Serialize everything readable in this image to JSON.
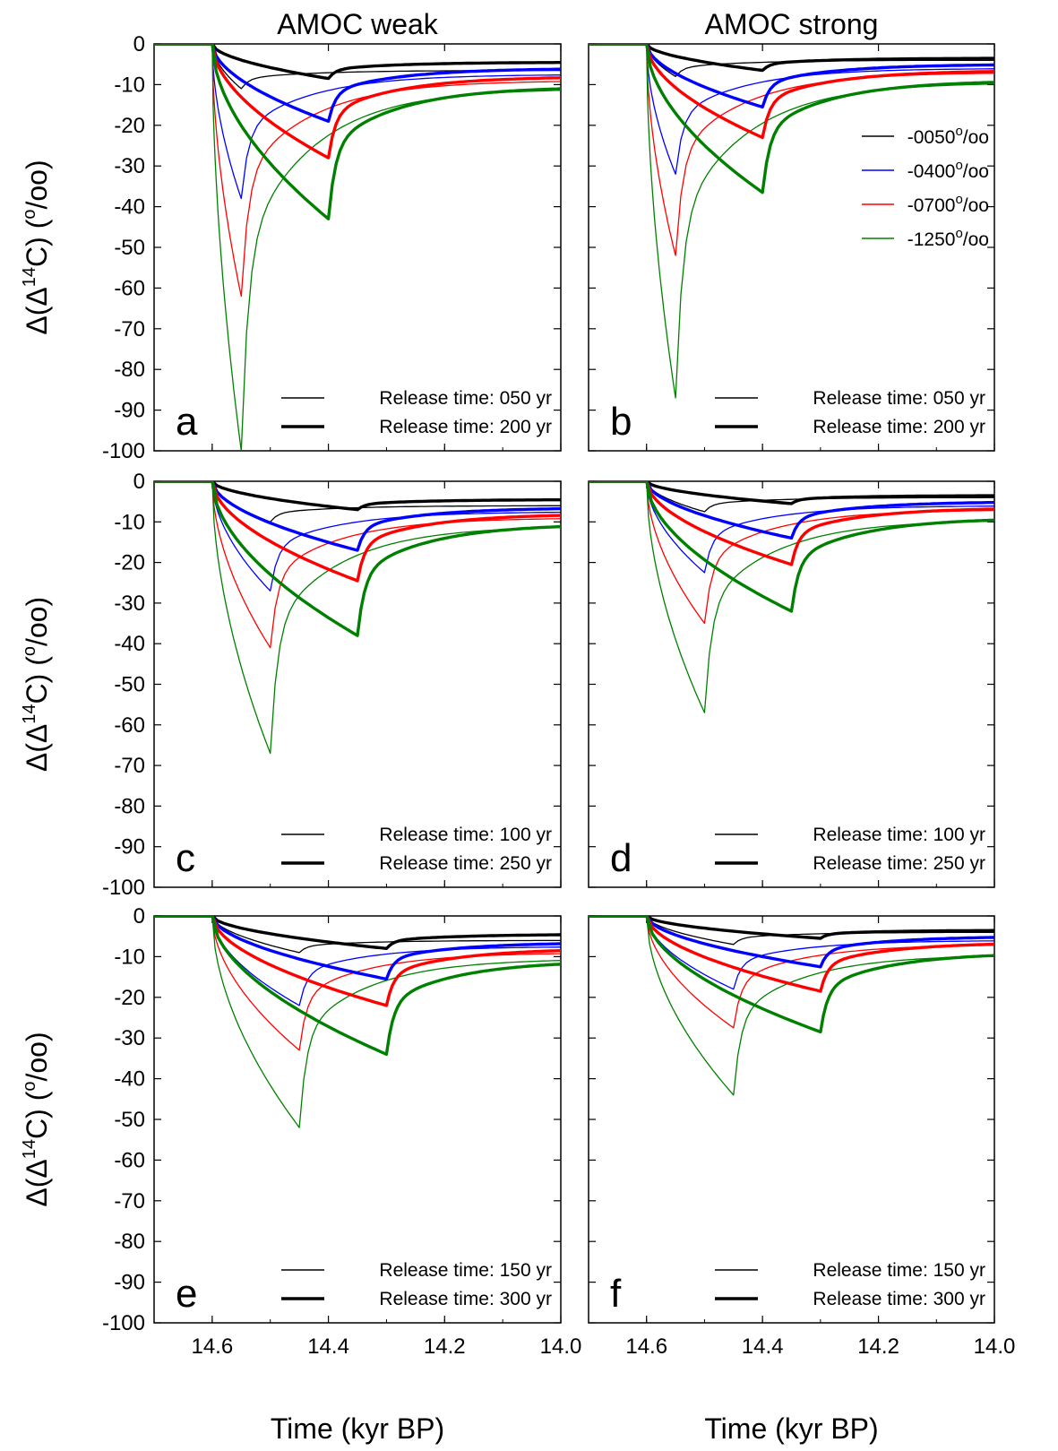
{
  "figure": {
    "column_titles": [
      "AMOC weak",
      "AMOC strong"
    ],
    "xlabel": "Time (kyr BP)",
    "ylabel_main": "Δ(Δ",
    "ylabel_sup": "14",
    "ylabel_tail": "C) (",
    "ylabel_unit_sup": "o",
    "ylabel_unit": "/oo)",
    "series_legend": [
      {
        "label": "-0050",
        "sup": "o",
        "unit": "/oo",
        "color": "#000000"
      },
      {
        "label": "-0400",
        "sup": "o",
        "unit": "/oo",
        "color": "#0000ff"
      },
      {
        "label": "-0700",
        "sup": "o",
        "unit": "/oo",
        "color": "#ff0000"
      },
      {
        "label": "-1250",
        "sup": "o",
        "unit": "/oo",
        "color": "#008000"
      }
    ]
  },
  "chart_data": [
    {
      "type": "line",
      "panel": "a",
      "release_labels": [
        "Release time: 050 yr",
        "Release time: 200 yr"
      ],
      "release_years": [
        50,
        200
      ],
      "xlim": [
        14.7,
        14.0
      ],
      "ylim": [
        -100,
        0
      ],
      "xticks": [
        "14.6",
        "14.4",
        "14.2",
        "14.0"
      ],
      "yticks": [
        "0",
        "-10",
        "-20",
        "-30",
        "-40",
        "-50",
        "-60",
        "-70",
        "-80",
        "-90",
        "-100"
      ],
      "peaks": {
        "thin": [
          -11,
          -38,
          -62,
          -100
        ],
        "thick": [
          -8.5,
          -19,
          -28,
          -43
        ]
      },
      "end_values": {
        "thin": [
          -6.5,
          -7.5,
          -9,
          -11
        ],
        "thick": [
          -4.5,
          -6,
          -8,
          -10.5
        ]
      }
    },
    {
      "type": "line",
      "panel": "b",
      "release_labels": [
        "Release time: 050 yr",
        "Release time: 200 yr"
      ],
      "release_years": [
        50,
        200
      ],
      "xlim": [
        14.7,
        14.0
      ],
      "ylim": [
        -100,
        0
      ],
      "xticks": [
        "14.6",
        "14.4",
        "14.2",
        "14.0"
      ],
      "yticks": [
        "0",
        "-10",
        "-20",
        "-30",
        "-40",
        "-50",
        "-60",
        "-70",
        "-80",
        "-90",
        "-100"
      ],
      "peaks": {
        "thin": [
          -8,
          -32,
          -52,
          -87
        ],
        "thick": [
          -6.5,
          -15.5,
          -23,
          -36.5
        ]
      },
      "end_values": {
        "thin": [
          -4,
          -6,
          -7,
          -9.5
        ],
        "thick": [
          -3.5,
          -5,
          -6.5,
          -9
        ]
      }
    },
    {
      "type": "line",
      "panel": "c",
      "release_labels": [
        "Release time: 100 yr",
        "Release time: 250 yr"
      ],
      "release_years": [
        100,
        250
      ],
      "xlim": [
        14.7,
        14.0
      ],
      "ylim": [
        -100,
        0
      ],
      "xticks": [
        "14.6",
        "14.4",
        "14.2",
        "14.0"
      ],
      "yticks": [
        "0",
        "-10",
        "-20",
        "-30",
        "-40",
        "-50",
        "-60",
        "-70",
        "-80",
        "-90",
        "-100"
      ],
      "peaks": {
        "thin": [
          -10,
          -27,
          -41,
          -67
        ],
        "thick": [
          -7,
          -17,
          -24.5,
          -38
        ]
      },
      "end_values": {
        "thin": [
          -6,
          -7.5,
          -9,
          -11
        ],
        "thick": [
          -4.5,
          -6.5,
          -8,
          -10.5
        ]
      }
    },
    {
      "type": "line",
      "panel": "d",
      "release_labels": [
        "Release time: 100 yr",
        "Release time: 250 yr"
      ],
      "release_years": [
        100,
        250
      ],
      "xlim": [
        14.7,
        14.0
      ],
      "ylim": [
        -100,
        0
      ],
      "xticks": [
        "14.6",
        "14.4",
        "14.2",
        "14.0"
      ],
      "yticks": [
        "0",
        "-10",
        "-20",
        "-30",
        "-40",
        "-50",
        "-60",
        "-70",
        "-80",
        "-90",
        "-100"
      ],
      "peaks": {
        "thin": [
          -7.5,
          -22.5,
          -35,
          -57
        ],
        "thick": [
          -5.5,
          -14,
          -20.5,
          -32
        ]
      },
      "end_values": {
        "thin": [
          -4,
          -6,
          -7,
          -9.5
        ],
        "thick": [
          -3.5,
          -5,
          -6.5,
          -9
        ]
      }
    },
    {
      "type": "line",
      "panel": "e",
      "release_labels": [
        "Release time: 150 yr",
        "Release time: 300 yr"
      ],
      "release_years": [
        150,
        300
      ],
      "xlim": [
        14.7,
        14.0
      ],
      "ylim": [
        -100,
        0
      ],
      "xticks": [
        "14.6",
        "14.4",
        "14.2",
        "14.0"
      ],
      "yticks": [
        "0",
        "-10",
        "-20",
        "-30",
        "-40",
        "-50",
        "-60",
        "-70",
        "-80",
        "-90",
        "-100"
      ],
      "peaks": {
        "thin": [
          -9,
          -22,
          -33,
          -52
        ],
        "thick": [
          -8,
          -15.5,
          -22,
          -34
        ]
      },
      "end_values": {
        "thin": [
          -6,
          -7.5,
          -9,
          -10.5
        ],
        "thick": [
          -4.5,
          -6.5,
          -8,
          -11
        ]
      }
    },
    {
      "type": "line",
      "panel": "f",
      "release_labels": [
        "Release time: 150 yr",
        "Release time: 300 yr"
      ],
      "release_years": [
        150,
        300
      ],
      "xlim": [
        14.7,
        14.0
      ],
      "ylim": [
        -100,
        0
      ],
      "xticks": [
        "14.6",
        "14.4",
        "14.2",
        "14.0"
      ],
      "yticks": [
        "0",
        "-10",
        "-20",
        "-30",
        "-40",
        "-50",
        "-60",
        "-70",
        "-80",
        "-90",
        "-100"
      ],
      "peaks": {
        "thin": [
          -7,
          -18,
          -27.5,
          -44
        ],
        "thick": [
          -5.5,
          -12.5,
          -18.5,
          -28.5
        ]
      },
      "end_values": {
        "thin": [
          -4,
          -6,
          -7,
          -9.5
        ],
        "thick": [
          -3.5,
          -5,
          -6.5,
          -9
        ]
      }
    }
  ]
}
